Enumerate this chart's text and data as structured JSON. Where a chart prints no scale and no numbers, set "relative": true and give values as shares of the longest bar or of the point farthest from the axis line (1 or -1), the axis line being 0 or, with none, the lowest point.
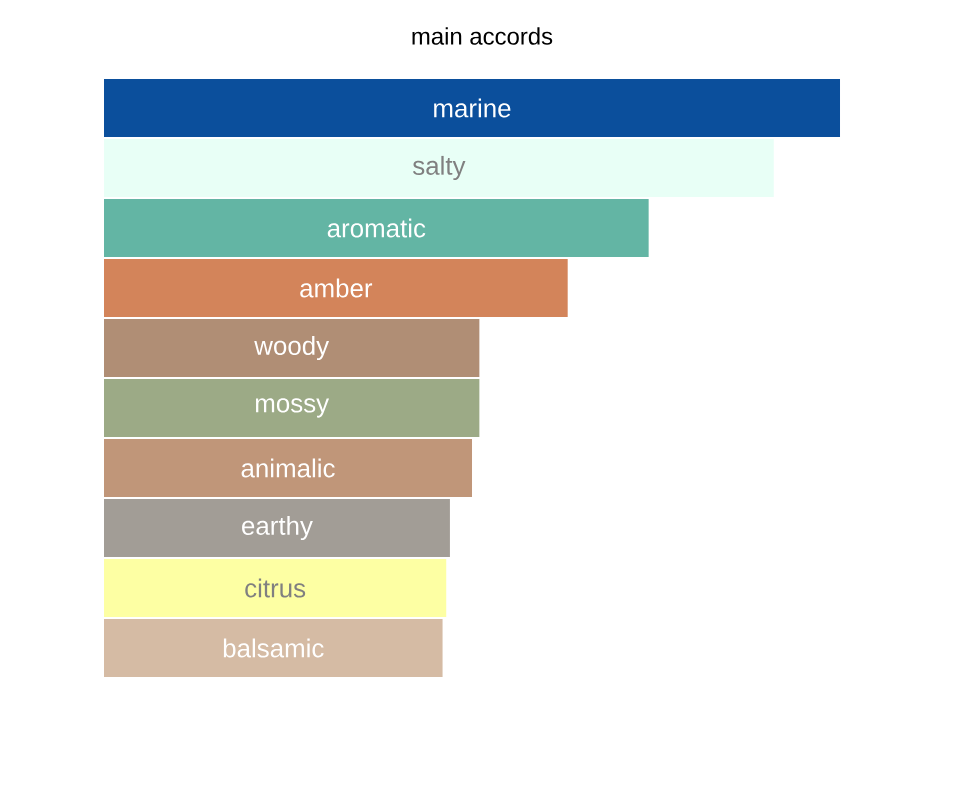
{
  "chart_data": {
    "type": "bar",
    "orientation": "horizontal",
    "relative": true,
    "title": "main accords",
    "categories": [
      "marine",
      "salty",
      "aromatic",
      "amber",
      "woody",
      "mossy",
      "animalic",
      "earthy",
      "citrus",
      "balsamic"
    ],
    "values": [
      1,
      0.91,
      0.74,
      0.63,
      0.51,
      0.51,
      0.5,
      0.47,
      0.465,
      0.46
    ],
    "colors": [
      "#0b4f9c",
      "#e8fff6",
      "#63b5a4",
      "#d3845a",
      "#b08e75",
      "#9caa86",
      "#c09679",
      "#a29d96",
      "#fdffa3",
      "#d5bba4"
    ]
  }
}
